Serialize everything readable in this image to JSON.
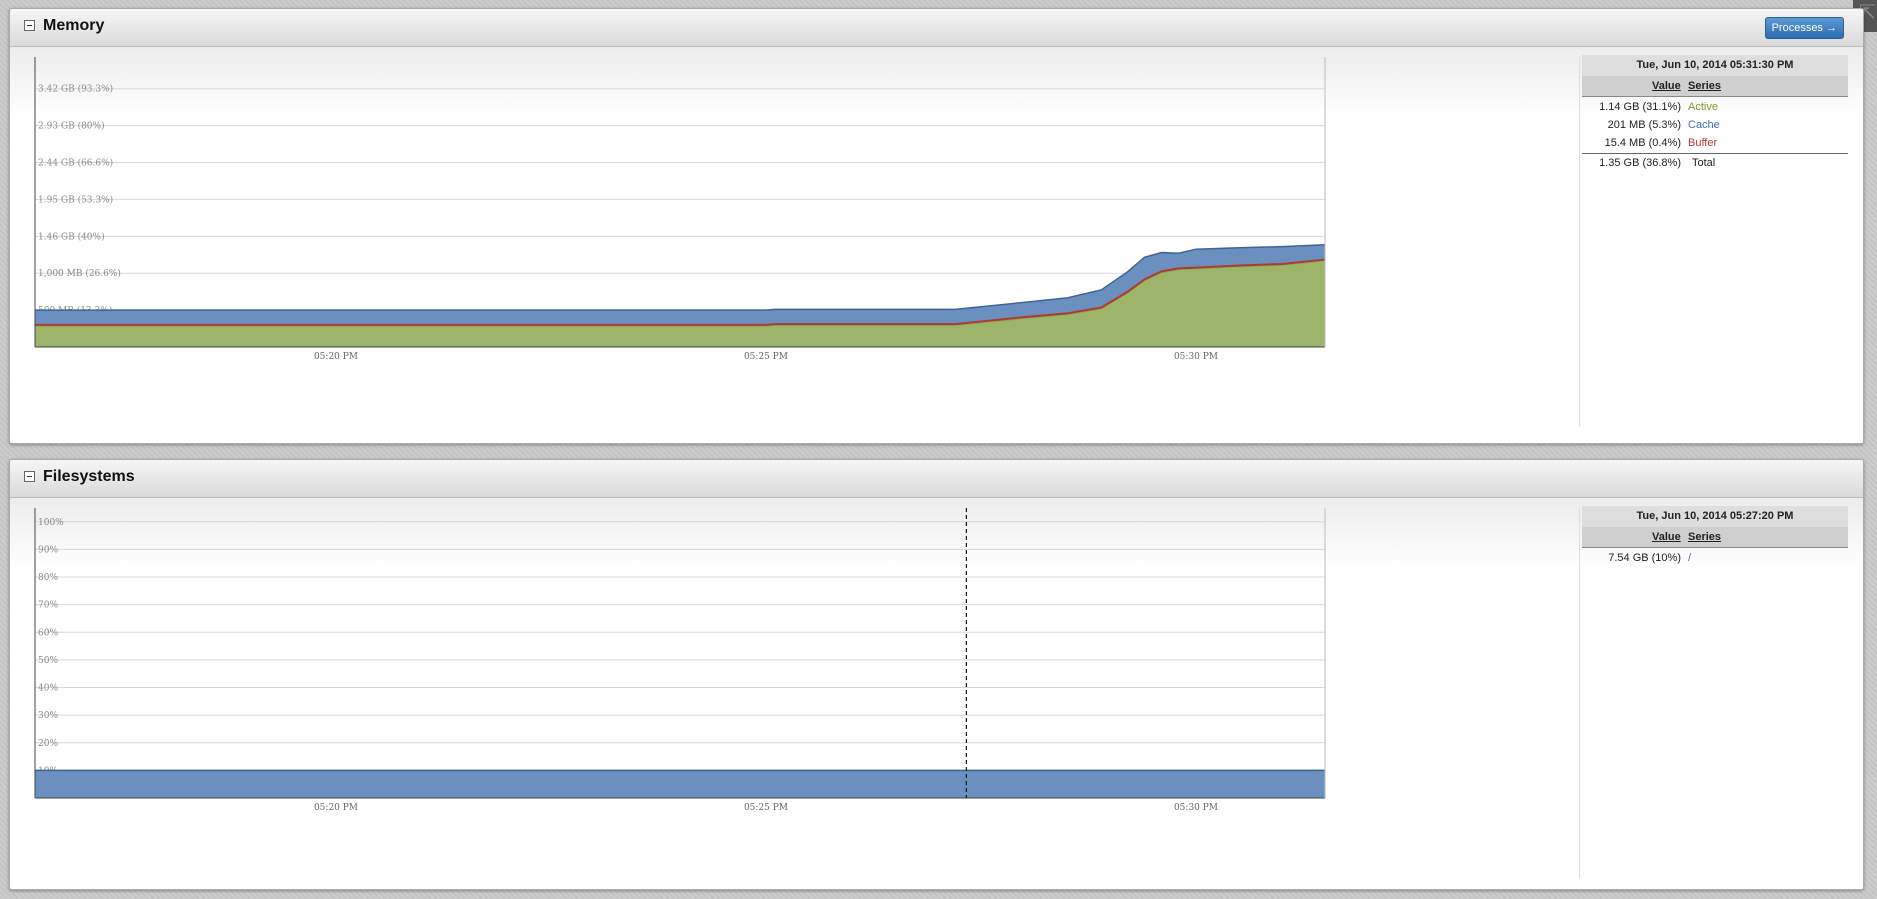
{
  "corner_icon": "collapse-arrows-icon",
  "memory": {
    "title": "Memory",
    "processes_button": "Processes →",
    "legend": {
      "date": "Tue, Jun 10, 2014 05:31:30 PM",
      "value_header": "Value",
      "series_header": "Series",
      "rows": [
        {
          "value": "1.14 GB (31.1%)",
          "series": "Active",
          "color": "#7a9a2e"
        },
        {
          "value": "201 MB (5.3%)",
          "series": "Cache",
          "color": "#3e6eaa"
        },
        {
          "value": "15.4 MB (0.4%)",
          "series": "Buffer",
          "color": "#b03a2e"
        }
      ],
      "total": {
        "value": "1.35 GB (36.8%)",
        "series": "Total"
      }
    },
    "chart_data": {
      "type": "area",
      "stacked": true,
      "x_ticks": [
        "05:20 PM",
        "05:25 PM",
        "05:30 PM"
      ],
      "x_range_minutes": [
        16.5,
        31.5
      ],
      "y_tick_labels": [
        "3.42 GB (93.3%)",
        "2.93 GB (80%)",
        "2.44 GB (66.6%)",
        "1.95 GB (53.3%)",
        "1.46 GB (40%)",
        "1,000 MB (26.6%)",
        "500 MB (13.3%)"
      ],
      "y_tick_values_mb": [
        3500,
        3000,
        2500,
        2000,
        1500,
        1000,
        500
      ],
      "y_range_mb": [
        0,
        3930
      ],
      "x_minutes": [
        16.5,
        23.1,
        25.0,
        25.1,
        27.2,
        27.5,
        28.0,
        28.5,
        28.9,
        29.2,
        29.4,
        29.6,
        29.8,
        30.0,
        30.5,
        31.0,
        31.5
      ],
      "series": [
        {
          "name": "Active",
          "color": "#9cb56a",
          "values_mb": [
            285,
            285,
            285,
            295,
            295,
            330,
            390,
            440,
            520,
            730,
            900,
            1010,
            1050,
            1060,
            1090,
            1110,
            1170
          ]
        },
        {
          "name": "Buffer",
          "color": "#b03a2e",
          "values_mb": [
            15,
            15,
            15,
            15,
            15,
            15,
            15,
            15,
            15,
            15,
            15,
            15,
            15,
            15,
            15,
            15,
            15
          ]
        },
        {
          "name": "Cache",
          "color": "#6b8fbe",
          "values_mb": [
            200,
            200,
            200,
            200,
            200,
            200,
            200,
            210,
            240,
            270,
            300,
            255,
            205,
            250,
            240,
            235,
            200
          ]
        }
      ],
      "grid": true
    }
  },
  "filesystems": {
    "title": "Filesystems",
    "legend": {
      "date": "Tue, Jun 10, 2014 05:27:20 PM",
      "value_header": "Value",
      "series_header": "Series",
      "rows": [
        {
          "value": "7.54 GB (10%)",
          "series": "/",
          "color": "#3e6eaa"
        }
      ]
    },
    "chart_data": {
      "type": "area",
      "x_ticks": [
        "05:20 PM",
        "05:25 PM",
        "05:30 PM"
      ],
      "x_range_minutes": [
        16.5,
        31.5
      ],
      "y_tick_labels": [
        "100%",
        "90%",
        "80%",
        "70%",
        "60%",
        "50%",
        "40%",
        "30%",
        "20%",
        "10%"
      ],
      "y_tick_values": [
        100,
        90,
        80,
        70,
        60,
        50,
        40,
        30,
        20,
        10
      ],
      "y_range": [
        0,
        105
      ],
      "hover_x_minutes": 27.33,
      "x_minutes": [
        16.5,
        31.5
      ],
      "series": [
        {
          "name": "/",
          "color": "#6b8fbe",
          "values": [
            10,
            10
          ]
        }
      ],
      "grid": true
    }
  }
}
